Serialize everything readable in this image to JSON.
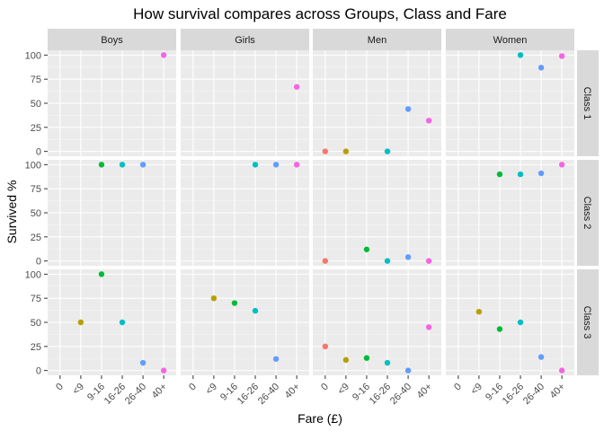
{
  "chart_data": {
    "type": "scatter",
    "title": "How survival compares across Groups, Class and Fare",
    "xlabel": "Fare (£)",
    "ylabel": "Survived %",
    "x_categories": [
      "0",
      "<9",
      "9-16",
      "16-26",
      "26-40",
      "40+"
    ],
    "y_ticks": [
      0,
      25,
      50,
      75,
      100
    ],
    "ylim": [
      -5,
      105
    ],
    "grid": true,
    "legend": "none",
    "columns": [
      "Boys",
      "Girls",
      "Men",
      "Women"
    ],
    "rows": [
      "Class 1",
      "Class 2",
      "Class 3"
    ],
    "colors": {
      "0": "#F8766D",
      "<9": "#B79F00",
      "9-16": "#00BA38",
      "16-26": "#00BFC4",
      "26-40": "#619CFF",
      "40+": "#F564E3"
    },
    "panels": [
      {
        "row": "Class 1",
        "col": "Boys",
        "points": [
          {
            "x": "40+",
            "y": 100
          }
        ]
      },
      {
        "row": "Class 1",
        "col": "Girls",
        "points": [
          {
            "x": "40+",
            "y": 67
          }
        ]
      },
      {
        "row": "Class 1",
        "col": "Men",
        "points": [
          {
            "x": "0",
            "y": 0
          },
          {
            "x": "<9",
            "y": 0
          },
          {
            "x": "16-26",
            "y": 0
          },
          {
            "x": "26-40",
            "y": 44
          },
          {
            "x": "40+",
            "y": 32
          }
        ]
      },
      {
        "row": "Class 1",
        "col": "Women",
        "points": [
          {
            "x": "16-26",
            "y": 100
          },
          {
            "x": "26-40",
            "y": 87
          },
          {
            "x": "40+",
            "y": 99
          }
        ]
      },
      {
        "row": "Class 2",
        "col": "Boys",
        "points": [
          {
            "x": "9-16",
            "y": 100
          },
          {
            "x": "16-26",
            "y": 100
          },
          {
            "x": "26-40",
            "y": 100
          }
        ]
      },
      {
        "row": "Class 2",
        "col": "Girls",
        "points": [
          {
            "x": "16-26",
            "y": 100
          },
          {
            "x": "26-40",
            "y": 100
          },
          {
            "x": "40+",
            "y": 100
          }
        ]
      },
      {
        "row": "Class 2",
        "col": "Men",
        "points": [
          {
            "x": "0",
            "y": 0
          },
          {
            "x": "9-16",
            "y": 12
          },
          {
            "x": "16-26",
            "y": 0
          },
          {
            "x": "26-40",
            "y": 4
          },
          {
            "x": "40+",
            "y": 0
          }
        ]
      },
      {
        "row": "Class 2",
        "col": "Women",
        "points": [
          {
            "x": "9-16",
            "y": 90
          },
          {
            "x": "16-26",
            "y": 90
          },
          {
            "x": "26-40",
            "y": 91
          },
          {
            "x": "40+",
            "y": 100
          }
        ]
      },
      {
        "row": "Class 3",
        "col": "Boys",
        "points": [
          {
            "x": "<9",
            "y": 50
          },
          {
            "x": "9-16",
            "y": 100
          },
          {
            "x": "16-26",
            "y": 50
          },
          {
            "x": "26-40",
            "y": 8
          },
          {
            "x": "40+",
            "y": 0
          }
        ]
      },
      {
        "row": "Class 3",
        "col": "Girls",
        "points": [
          {
            "x": "<9",
            "y": 75
          },
          {
            "x": "9-16",
            "y": 70
          },
          {
            "x": "16-26",
            "y": 62
          },
          {
            "x": "26-40",
            "y": 12
          }
        ]
      },
      {
        "row": "Class 3",
        "col": "Men",
        "points": [
          {
            "x": "0",
            "y": 25
          },
          {
            "x": "<9",
            "y": 11
          },
          {
            "x": "9-16",
            "y": 13
          },
          {
            "x": "16-26",
            "y": 8
          },
          {
            "x": "26-40",
            "y": 0
          },
          {
            "x": "40+",
            "y": 45
          }
        ]
      },
      {
        "row": "Class 3",
        "col": "Women",
        "points": [
          {
            "x": "<9",
            "y": 61
          },
          {
            "x": "9-16",
            "y": 43
          },
          {
            "x": "16-26",
            "y": 50
          },
          {
            "x": "26-40",
            "y": 14
          },
          {
            "x": "40+",
            "y": 0
          }
        ]
      }
    ]
  }
}
